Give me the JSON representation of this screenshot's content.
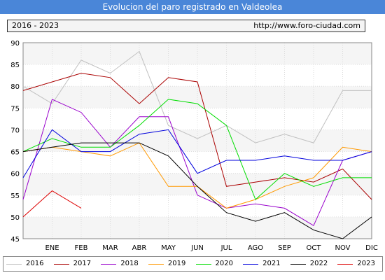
{
  "header": {
    "title": "Evolucion del paro registrado en Valdeolea",
    "period": "2016 - 2023",
    "url": "http://www.foro-ciudad.com"
  },
  "chart_data": {
    "type": "line",
    "categories": [
      "",
      "ENE",
      "FEB",
      "MAR",
      "ABR",
      "MAY",
      "JUN",
      "JUL",
      "AGO",
      "SEP",
      "OCT",
      "NOV",
      "DIC"
    ],
    "ylim": [
      45,
      90
    ],
    "yticks": [
      45,
      50,
      55,
      60,
      65,
      70,
      75,
      80,
      85,
      90
    ],
    "grid": true,
    "legend_position": "bottom",
    "series": [
      {
        "name": "2016",
        "color": "#c0c0c0",
        "values": [
          80,
          76,
          86,
          83,
          88,
          71,
          68,
          71,
          67,
          69,
          67,
          79,
          79
        ]
      },
      {
        "name": "2017",
        "color": "#aa0000",
        "values": [
          79,
          81,
          83,
          82,
          76,
          82,
          81,
          57,
          58,
          59,
          58,
          61,
          54
        ]
      },
      {
        "name": "2018",
        "color": "#9900cc",
        "values": [
          54,
          77,
          74,
          66,
          73,
          73,
          55,
          52,
          53,
          52,
          48,
          63,
          65
        ]
      },
      {
        "name": "2019",
        "color": "#ff9900",
        "values": [
          65,
          66,
          65,
          64,
          67,
          57,
          57,
          52,
          54,
          57,
          59,
          66,
          65
        ]
      },
      {
        "name": "2020",
        "color": "#00dd00",
        "values": [
          65,
          68,
          66,
          66,
          71,
          77,
          76,
          71,
          54,
          60,
          57,
          59,
          59
        ]
      },
      {
        "name": "2021",
        "color": "#0000dd",
        "values": [
          59,
          70,
          65,
          65,
          69,
          70,
          60,
          63,
          63,
          64,
          63,
          63,
          65
        ]
      },
      {
        "name": "2022",
        "color": "#000000",
        "values": [
          65,
          66,
          67,
          67,
          67,
          64,
          57,
          51,
          49,
          51,
          47,
          45,
          50
        ]
      },
      {
        "name": "2023",
        "color": "#dd0000",
        "values": [
          50,
          56,
          52,
          null,
          null,
          null,
          null,
          null,
          null,
          null,
          null,
          null,
          null
        ]
      }
    ]
  }
}
